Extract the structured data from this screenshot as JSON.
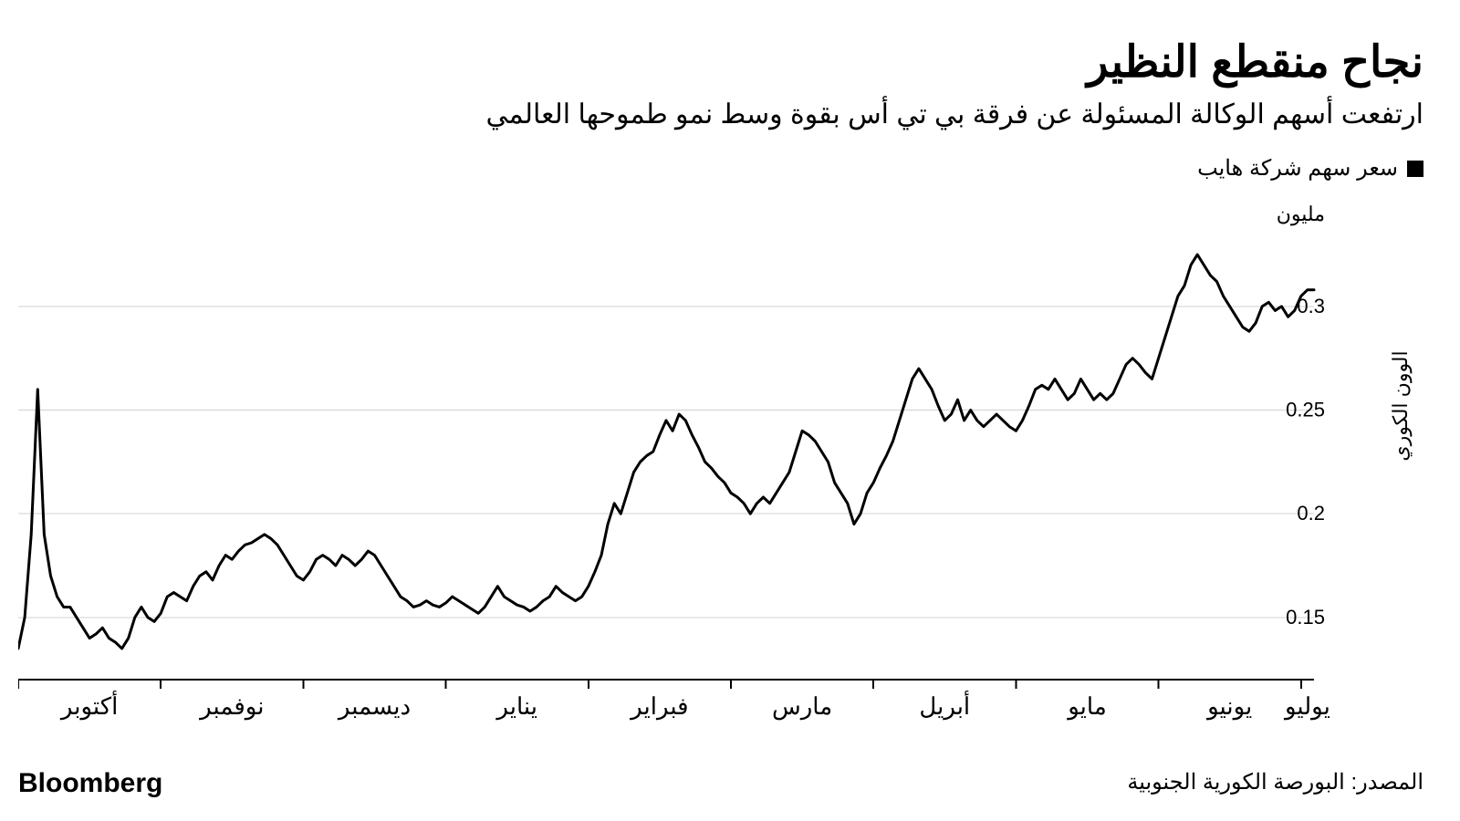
{
  "title": "نجاح منقطع النظير",
  "subtitle": "ارتفعت أسهم الوكالة المسئولة عن فرقة بي تي أس بقوة وسط نمو طموحها العالمي",
  "legend": {
    "swatch_color": "#000000",
    "label": "سعر سهم شركة هايب"
  },
  "chart": {
    "type": "line",
    "background_color": "#ffffff",
    "grid_color": "#d0d0d0",
    "line_color": "#000000",
    "line_width": 3,
    "y_axis": {
      "units_label": "مليون",
      "axis_title": "الوون الكوري",
      "min": 0.12,
      "max": 0.34,
      "ticks": [
        0.15,
        0.2,
        0.25,
        0.3
      ]
    },
    "x_axis": {
      "labels": [
        "أكتوبر",
        "نوفمبر",
        "ديسمبر",
        "يناير",
        "فبراير",
        "مارس",
        "أبريل",
        "مايو",
        "يونيو",
        "يوليو"
      ],
      "index_min": 0,
      "index_max": 200,
      "month_boundaries": [
        0,
        22,
        44,
        66,
        88,
        110,
        132,
        154,
        176,
        198
      ]
    },
    "series": [
      {
        "name": "hybe_price",
        "values": [
          0.135,
          0.15,
          0.19,
          0.26,
          0.19,
          0.17,
          0.16,
          0.155,
          0.155,
          0.15,
          0.145,
          0.14,
          0.142,
          0.145,
          0.14,
          0.138,
          0.135,
          0.14,
          0.15,
          0.155,
          0.15,
          0.148,
          0.152,
          0.16,
          0.162,
          0.16,
          0.158,
          0.165,
          0.17,
          0.172,
          0.168,
          0.175,
          0.18,
          0.178,
          0.182,
          0.185,
          0.186,
          0.188,
          0.19,
          0.188,
          0.185,
          0.18,
          0.175,
          0.17,
          0.168,
          0.172,
          0.178,
          0.18,
          0.178,
          0.175,
          0.18,
          0.178,
          0.175,
          0.178,
          0.182,
          0.18,
          0.175,
          0.17,
          0.165,
          0.16,
          0.158,
          0.155,
          0.156,
          0.158,
          0.156,
          0.155,
          0.157,
          0.16,
          0.158,
          0.156,
          0.154,
          0.152,
          0.155,
          0.16,
          0.165,
          0.16,
          0.158,
          0.156,
          0.155,
          0.153,
          0.155,
          0.158,
          0.16,
          0.165,
          0.162,
          0.16,
          0.158,
          0.16,
          0.165,
          0.172,
          0.18,
          0.195,
          0.205,
          0.2,
          0.21,
          0.22,
          0.225,
          0.228,
          0.23,
          0.238,
          0.245,
          0.24,
          0.248,
          0.245,
          0.238,
          0.232,
          0.225,
          0.222,
          0.218,
          0.215,
          0.21,
          0.208,
          0.205,
          0.2,
          0.205,
          0.208,
          0.205,
          0.21,
          0.215,
          0.22,
          0.23,
          0.24,
          0.238,
          0.235,
          0.23,
          0.225,
          0.215,
          0.21,
          0.205,
          0.195,
          0.2,
          0.21,
          0.215,
          0.222,
          0.228,
          0.235,
          0.245,
          0.255,
          0.265,
          0.27,
          0.265,
          0.26,
          0.252,
          0.245,
          0.248,
          0.255,
          0.245,
          0.25,
          0.245,
          0.242,
          0.245,
          0.248,
          0.245,
          0.242,
          0.24,
          0.245,
          0.252,
          0.26,
          0.262,
          0.26,
          0.265,
          0.26,
          0.255,
          0.258,
          0.265,
          0.26,
          0.255,
          0.258,
          0.255,
          0.258,
          0.265,
          0.272,
          0.275,
          0.272,
          0.268,
          0.265,
          0.275,
          0.285,
          0.295,
          0.305,
          0.31,
          0.32,
          0.325,
          0.32,
          0.315,
          0.312,
          0.305,
          0.3,
          0.295,
          0.29,
          0.288,
          0.292,
          0.3,
          0.302,
          0.298,
          0.3,
          0.295,
          0.298,
          0.305,
          0.308,
          0.308
        ]
      }
    ]
  },
  "source": "المصدر: البورصة الكورية الجنوبية",
  "brand": "Bloomberg"
}
